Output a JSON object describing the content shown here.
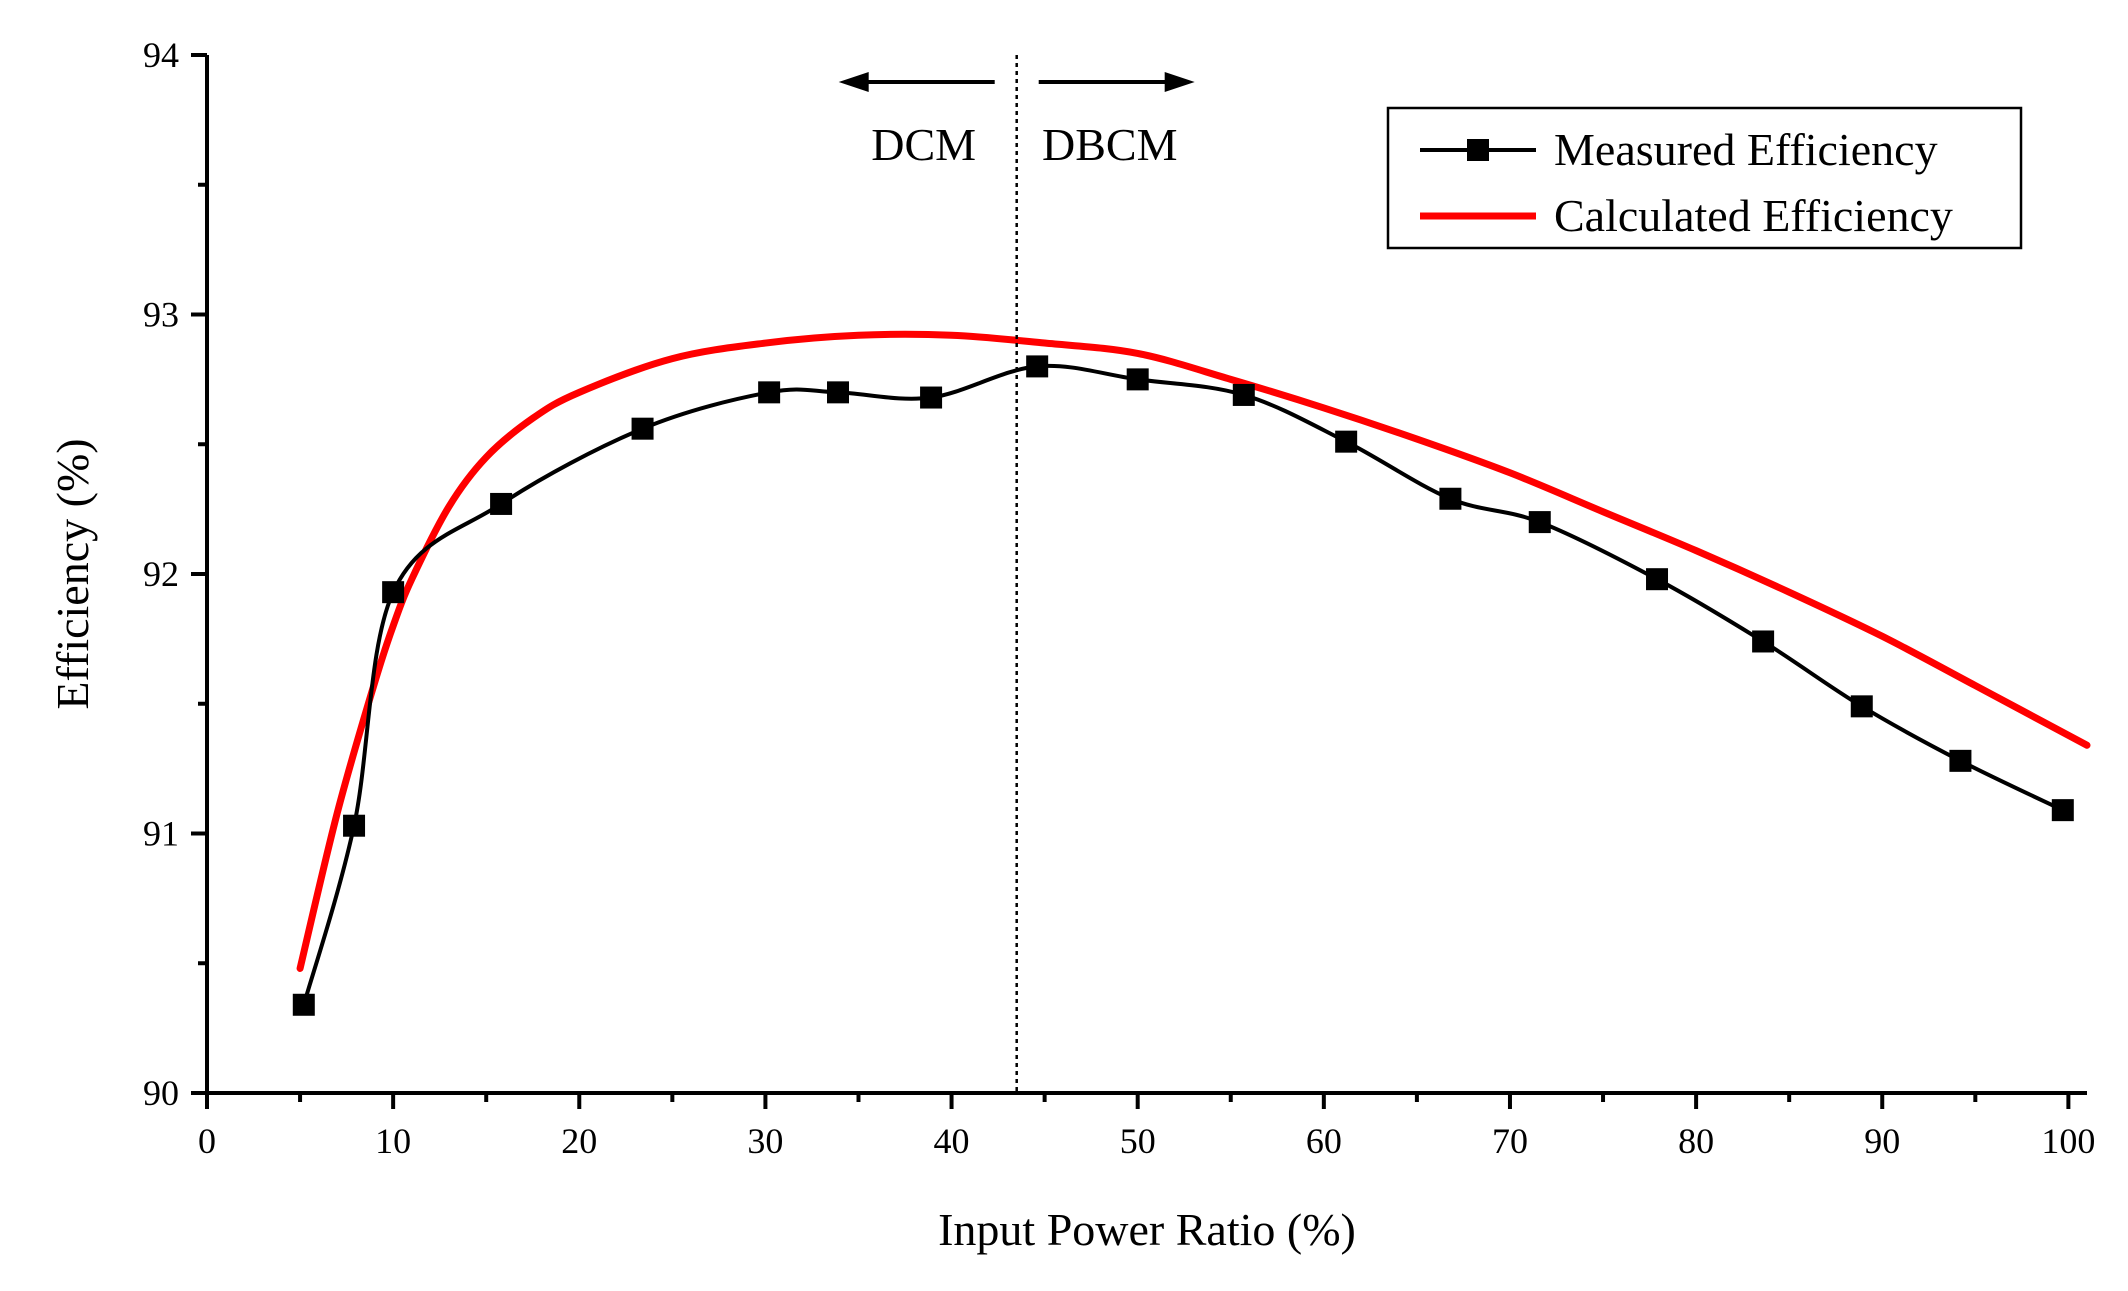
{
  "chart_data": {
    "type": "line",
    "xlabel": "Input Power Ratio (%)",
    "ylabel": "Efficiency (%)",
    "xlim": [
      0,
      101
    ],
    "ylim": [
      90,
      94
    ],
    "xticks": [
      0,
      10,
      20,
      30,
      40,
      50,
      60,
      70,
      80,
      90,
      100
    ],
    "yticks": [
      90,
      91,
      92,
      93,
      94
    ],
    "grid": false,
    "legend_position": "top-right",
    "series": [
      {
        "name": "Measured Efficiency",
        "color": "#000000",
        "marker": "square",
        "x": [
          5.2,
          7.9,
          10.0,
          15.8,
          23.4,
          30.2,
          33.9,
          38.9,
          44.6,
          50.0,
          55.7,
          61.2,
          66.8,
          71.6,
          77.9,
          83.6,
          88.9,
          94.2,
          99.7
        ],
        "y": [
          90.34,
          91.03,
          91.93,
          92.27,
          92.56,
          92.7,
          92.7,
          92.68,
          92.8,
          92.75,
          92.69,
          92.51,
          92.29,
          92.2,
          91.98,
          91.74,
          91.49,
          91.28,
          91.09
        ]
      },
      {
        "name": "Calculated Efficiency",
        "color": "#ff0000",
        "marker": "none",
        "x": [
          5.0,
          7.0,
          9.0,
          10.0,
          11.0,
          13.0,
          15.0,
          17.5,
          20.0,
          25.0,
          30.0,
          35.0,
          40.0,
          45.0,
          50.0,
          55.0,
          60.0,
          65.0,
          70.0,
          75.0,
          80.0,
          85.0,
          90.0,
          95.0,
          101.0
        ],
        "y": [
          90.48,
          91.08,
          91.58,
          91.8,
          91.98,
          92.26,
          92.45,
          92.6,
          92.7,
          92.83,
          92.89,
          92.92,
          92.92,
          92.89,
          92.85,
          92.75,
          92.64,
          92.52,
          92.39,
          92.24,
          92.09,
          91.93,
          91.76,
          91.57,
          91.34
        ]
      }
    ],
    "annotations": [
      {
        "text": "DCM",
        "x": 38.5,
        "direction": "left"
      },
      {
        "text": "DBCM",
        "x": 48.5,
        "direction": "right"
      }
    ],
    "divider_x": 43.5
  }
}
